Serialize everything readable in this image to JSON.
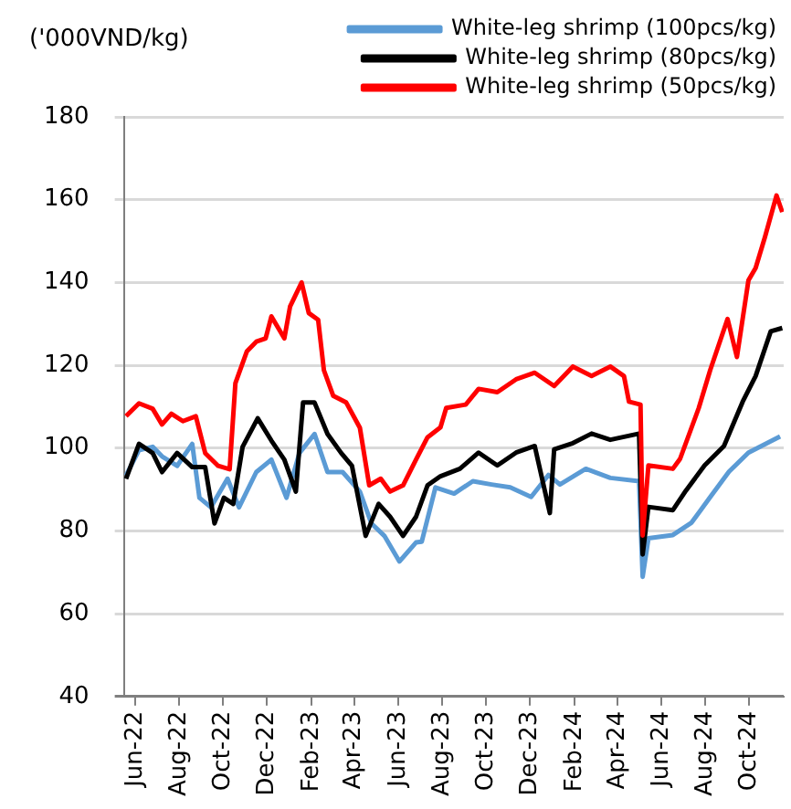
{
  "chart_data": {
    "type": "line",
    "ylabel": "('000VND/kg)",
    "xlim": [
      "2022-05-16",
      "2024-11-18"
    ],
    "xticks": [
      {
        "value": "2022-06-01",
        "label": "Jun-22"
      },
      {
        "value": "2022-08-01",
        "label": "Aug-22"
      },
      {
        "value": "2022-10-01",
        "label": "Oct-22"
      },
      {
        "value": "2022-12-01",
        "label": "Dec-22"
      },
      {
        "value": "2023-02-01",
        "label": "Feb-23"
      },
      {
        "value": "2023-04-01",
        "label": "Apr-23"
      },
      {
        "value": "2023-06-01",
        "label": "Jun-23"
      },
      {
        "value": "2023-08-01",
        "label": "Aug-23"
      },
      {
        "value": "2023-10-01",
        "label": "Oct-23"
      },
      {
        "value": "2023-12-01",
        "label": "Dec-23"
      },
      {
        "value": "2024-02-01",
        "label": "Feb-24"
      },
      {
        "value": "2024-04-01",
        "label": "Apr-24"
      },
      {
        "value": "2024-06-01",
        "label": "Jun-24"
      },
      {
        "value": "2024-08-01",
        "label": "Aug-24"
      },
      {
        "value": "2024-10-01",
        "label": "Oct-24"
      }
    ],
    "ylim": [
      40,
      180
    ],
    "yticks": [
      40,
      60,
      80,
      100,
      120,
      140,
      160,
      180
    ],
    "grid": "y",
    "legend": "top right",
    "marker": "none",
    "line_style": "solid",
    "series": [
      {
        "name": "White-leg shrimp (100pcs/kg)",
        "color": "#5b9bd5",
        "x": [
          "2022-05-19",
          "2022-06-06",
          "2022-06-25",
          "2022-07-08",
          "2022-07-29",
          "2022-08-19",
          "2022-08-29",
          "2022-09-14",
          "2022-10-07",
          "2022-10-23",
          "2022-11-16",
          "2022-12-07",
          "2022-12-28",
          "2023-01-15",
          "2023-02-05",
          "2023-02-23",
          "2023-03-16",
          "2023-04-09",
          "2023-04-25",
          "2023-05-13",
          "2023-06-03",
          "2023-06-26",
          "2023-07-04",
          "2023-07-23",
          "2023-08-18",
          "2023-09-13",
          "2023-10-09",
          "2023-11-04",
          "2023-12-03",
          "2023-12-27",
          "2024-01-12",
          "2024-02-17",
          "2024-03-22",
          "2024-05-01",
          "2024-05-06",
          "2024-05-14",
          "2024-06-17",
          "2024-07-13",
          "2024-08-08",
          "2024-09-03",
          "2024-09-30",
          "2024-10-26",
          "2024-11-13"
        ],
        "values": [
          93.4,
          99.5,
          100.3,
          98,
          95.7,
          101,
          88,
          85.7,
          92.6,
          85.7,
          94.2,
          97.2,
          88,
          98.8,
          103.4,
          94.2,
          94.2,
          89.5,
          81.8,
          78.8,
          72.6,
          77.2,
          77.4,
          90.5,
          89,
          92,
          91.2,
          90.5,
          88.2,
          93.5,
          91.2,
          95,
          92.8,
          92,
          68.9,
          78.2,
          79,
          82,
          88.2,
          94.3,
          98.9,
          101.2,
          102.8
        ]
      },
      {
        "name": "White-leg shrimp (80pcs/kg)",
        "color": "#000000",
        "x": [
          "2022-05-19",
          "2022-06-06",
          "2022-06-25",
          "2022-07-08",
          "2022-07-29",
          "2022-08-19",
          "2022-09-06",
          "2022-09-19",
          "2022-10-02",
          "2022-10-15",
          "2022-10-28",
          "2022-11-18",
          "2022-12-07",
          "2022-12-25",
          "2023-01-10",
          "2023-01-20",
          "2023-02-05",
          "2023-02-23",
          "2023-03-14",
          "2023-03-29",
          "2023-04-17",
          "2023-05-05",
          "2023-05-21",
          "2023-06-08",
          "2023-06-26",
          "2023-07-12",
          "2023-07-30",
          "2023-08-26",
          "2023-09-21",
          "2023-10-17",
          "2023-11-12",
          "2023-12-08",
          "2023-12-29",
          "2024-01-04",
          "2024-01-30",
          "2024-02-25",
          "2024-03-22",
          "2024-05-01",
          "2024-05-06",
          "2024-05-14",
          "2024-06-17",
          "2024-07-05",
          "2024-07-31",
          "2024-08-27",
          "2024-09-22",
          "2024-10-10",
          "2024-10-31",
          "2024-11-16"
        ],
        "values": [
          92.6,
          101,
          98.8,
          94.2,
          98.8,
          95.4,
          95.4,
          81.8,
          88,
          86.5,
          100.3,
          107.2,
          101.8,
          97.2,
          89.5,
          111,
          111,
          103.4,
          98.8,
          95.7,
          78.8,
          86.5,
          83.4,
          78.8,
          83.4,
          91,
          93.2,
          95,
          98.9,
          95.8,
          98.9,
          100.5,
          84.3,
          99.7,
          101.2,
          103.5,
          102,
          103.5,
          74.3,
          85.8,
          85,
          89.7,
          95.8,
          100.5,
          111.2,
          117.4,
          128.2,
          129
        ]
      },
      {
        "name": "White-leg shrimp (50pcs/kg)",
        "color": "#ff0000",
        "x": [
          "2022-05-19",
          "2022-06-06",
          "2022-06-25",
          "2022-07-08",
          "2022-07-21",
          "2022-08-06",
          "2022-08-24",
          "2022-09-06",
          "2022-09-24",
          "2022-10-10",
          "2022-10-18",
          "2022-11-03",
          "2022-11-16",
          "2022-11-29",
          "2022-12-07",
          "2022-12-25",
          "2023-01-02",
          "2023-01-18",
          "2023-01-28",
          "2023-02-10",
          "2023-02-18",
          "2023-03-03",
          "2023-03-21",
          "2023-04-09",
          "2023-04-22",
          "2023-05-08",
          "2023-05-21",
          "2023-06-08",
          "2023-06-26",
          "2023-07-12",
          "2023-07-30",
          "2023-08-07",
          "2023-09-03",
          "2023-09-21",
          "2023-10-17",
          "2023-11-12",
          "2023-12-08",
          "2024-01-04",
          "2024-01-30",
          "2024-02-25",
          "2024-03-22",
          "2024-04-10",
          "2024-04-17",
          "2024-05-03",
          "2024-05-06",
          "2024-05-14",
          "2024-06-17",
          "2024-06-27",
          "2024-07-23",
          "2024-08-08",
          "2024-09-01",
          "2024-09-14",
          "2024-09-30",
          "2024-10-10",
          "2024-10-23",
          "2024-11-08",
          "2024-11-16"
        ],
        "values": [
          107.7,
          110.8,
          109.5,
          105.7,
          108.3,
          106.5,
          107.7,
          98.8,
          95.7,
          94.9,
          115.7,
          123.4,
          125.7,
          126.5,
          131.8,
          126.5,
          134.2,
          140,
          132.6,
          131,
          118.8,
          112.6,
          111,
          104.9,
          91,
          92.6,
          89.5,
          91,
          97.2,
          102.6,
          105,
          109.7,
          110.5,
          114.3,
          113.5,
          116.6,
          118.2,
          115,
          119.7,
          117.4,
          119.7,
          117.4,
          111.2,
          110.5,
          78.9,
          95.8,
          95,
          97.4,
          109.7,
          118.9,
          131.2,
          122,
          140.5,
          143.5,
          151,
          161,
          157
        ]
      }
    ]
  }
}
